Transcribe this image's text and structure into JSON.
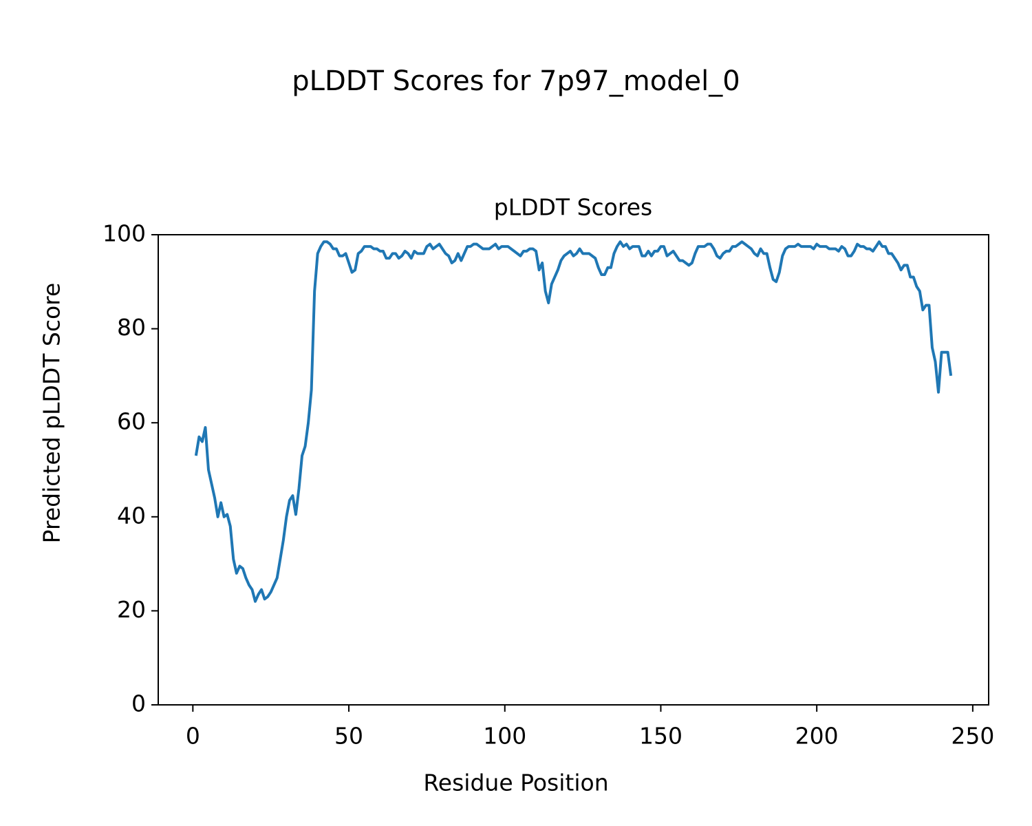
{
  "chart_data": {
    "type": "line",
    "suptitle": "pLDDT Scores for 7p97_model_0",
    "title": "pLDDT Scores",
    "xlabel": "Residue Position",
    "ylabel": "Predicted pLDDT Score",
    "xlim": [
      -11.1,
      255.1
    ],
    "ylim": [
      0,
      100
    ],
    "xticks": [
      0,
      50,
      100,
      150,
      200,
      250
    ],
    "yticks": [
      0,
      20,
      40,
      60,
      80,
      100
    ],
    "grid": false,
    "x": [
      1,
      2,
      3,
      4,
      5,
      6,
      7,
      8,
      9,
      10,
      11,
      12,
      13,
      14,
      15,
      16,
      17,
      18,
      19,
      20,
      21,
      22,
      23,
      24,
      25,
      26,
      27,
      28,
      29,
      30,
      31,
      32,
      33,
      34,
      35,
      36,
      37,
      38,
      39,
      40,
      41,
      42,
      43,
      44,
      45,
      46,
      47,
      48,
      49,
      50,
      51,
      52,
      53,
      54,
      55,
      56,
      57,
      58,
      59,
      60,
      61,
      62,
      63,
      64,
      65,
      66,
      67,
      68,
      69,
      70,
      71,
      72,
      73,
      74,
      75,
      76,
      77,
      78,
      79,
      80,
      81,
      82,
      83,
      84,
      85,
      86,
      87,
      88,
      89,
      90,
      91,
      92,
      93,
      94,
      95,
      96,
      97,
      98,
      99,
      100,
      101,
      102,
      103,
      104,
      105,
      106,
      107,
      108,
      109,
      110,
      111,
      112,
      113,
      114,
      115,
      116,
      117,
      118,
      119,
      120,
      121,
      122,
      123,
      124,
      125,
      126,
      127,
      128,
      129,
      130,
      131,
      132,
      133,
      134,
      135,
      136,
      137,
      138,
      139,
      140,
      141,
      142,
      143,
      144,
      145,
      146,
      147,
      148,
      149,
      150,
      151,
      152,
      153,
      154,
      155,
      156,
      157,
      158,
      159,
      160,
      161,
      162,
      163,
      164,
      165,
      166,
      167,
      168,
      169,
      170,
      171,
      172,
      173,
      174,
      175,
      176,
      177,
      178,
      179,
      180,
      181,
      182,
      183,
      184,
      185,
      186,
      187,
      188,
      189,
      190,
      191,
      192,
      193,
      194,
      195,
      196,
      197,
      198,
      199,
      200,
      201,
      202,
      203,
      204,
      205,
      206,
      207,
      208,
      209,
      210,
      211,
      212,
      213,
      214,
      215,
      216,
      217,
      218,
      219,
      220,
      221,
      222,
      223,
      224,
      225,
      226,
      227,
      228,
      229,
      230,
      231,
      232,
      233,
      234,
      235,
      236,
      237,
      238,
      239,
      240,
      241,
      242,
      243
    ],
    "series": [
      {
        "name": "pLDDT",
        "color": "#1f77b4",
        "values": [
          53,
          57,
          56,
          59,
          50,
          47,
          44,
          40,
          43,
          40,
          40.5,
          38,
          31,
          28,
          29.5,
          29,
          27,
          25.5,
          24.5,
          22,
          23.5,
          24.5,
          22.5,
          23,
          24,
          25.5,
          27,
          31,
          35,
          40,
          43.5,
          44.5,
          40.5,
          46,
          53,
          55,
          60,
          67,
          88,
          96,
          97.5,
          98.5,
          98.5,
          98,
          97,
          97,
          95.5,
          95.5,
          96,
          94,
          92,
          92.5,
          96,
          96.5,
          97.5,
          97.5,
          97.5,
          97,
          97,
          96.5,
          96.5,
          95,
          95,
          96,
          96,
          95,
          95.5,
          96.5,
          96,
          95,
          96.5,
          96,
          96,
          96,
          97.5,
          98,
          97,
          97.5,
          98,
          97,
          96,
          95.5,
          94,
          94.5,
          96,
          94.5,
          96,
          97.5,
          97.5,
          98,
          98,
          97.5,
          97,
          97,
          97,
          97.5,
          98,
          97,
          97.5,
          97.5,
          97.5,
          97,
          96.5,
          96,
          95.5,
          96.5,
          96.5,
          97,
          97,
          96.5,
          92.5,
          94,
          88,
          85.5,
          89.5,
          91,
          92.5,
          94.5,
          95.5,
          96,
          96.5,
          95.5,
          96,
          97,
          96,
          96,
          96,
          95.5,
          95,
          93,
          91.5,
          91.5,
          93,
          93,
          96,
          97.5,
          98.5,
          97.5,
          98,
          97,
          97.5,
          97.5,
          97.5,
          95.5,
          95.5,
          96.5,
          95.5,
          96.5,
          96.5,
          97.5,
          97.5,
          95.5,
          96,
          96.5,
          95.5,
          94.5,
          94.5,
          94,
          93.5,
          94,
          96,
          97.5,
          97.5,
          97.5,
          98,
          98,
          97,
          95.5,
          95,
          96,
          96.5,
          96.5,
          97.5,
          97.5,
          98,
          98.5,
          98,
          97.5,
          97,
          96,
          95.5,
          97,
          96,
          96,
          93,
          90.5,
          90,
          92,
          95.5,
          97,
          97.5,
          97.5,
          97.5,
          98,
          97.5,
          97.5,
          97.5,
          97.5,
          97,
          98,
          97.5,
          97.5,
          97.5,
          97,
          97,
          97,
          96.5,
          97.5,
          97,
          95.5,
          95.5,
          96.5,
          98,
          97.5,
          97.5,
          97,
          97,
          96.5,
          97.5,
          98.5,
          97.5,
          97.5,
          96,
          96,
          95,
          94,
          92.5,
          93.5,
          93.5,
          91,
          91,
          89,
          88,
          84,
          85,
          85,
          76,
          73,
          66.5,
          75,
          75,
          75,
          70
        ]
      }
    ]
  }
}
